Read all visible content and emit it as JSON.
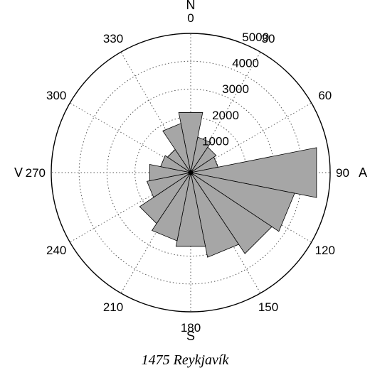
{
  "caption": "1475 Reykjavík",
  "chart_data": {
    "type": "polar-bar",
    "direction_unit": "degrees",
    "radial_max": 5000,
    "radial_ticks": [
      1000,
      2000,
      3000,
      4000,
      5000
    ],
    "radial_tick_labels": [
      "1000",
      "2000",
      "3000",
      "4000",
      "5000"
    ],
    "angle_ticks": [
      0,
      30,
      60,
      90,
      120,
      150,
      180,
      210,
      240,
      270,
      300,
      330
    ],
    "angle_tick_labels": [
      "0",
      "30",
      "60",
      "90",
      "120",
      "150",
      "180",
      "210",
      "240",
      "270",
      "300",
      "330"
    ],
    "compass_labels": {
      "N": "N",
      "A": "A",
      "S": "S",
      "V": "V"
    },
    "sector_width_deg": 22.5,
    "sectors": [
      {
        "direction": 0,
        "value": 2200
      },
      {
        "direction": 22.5,
        "value": 1300
      },
      {
        "direction": 45,
        "value": 1100
      },
      {
        "direction": 67.5,
        "value": 1000
      },
      {
        "direction": 90,
        "value": 4600
      },
      {
        "direction": 112.5,
        "value": 3800
      },
      {
        "direction": 135,
        "value": 3500
      },
      {
        "direction": 157.5,
        "value": 3100
      },
      {
        "direction": 180,
        "value": 2700
      },
      {
        "direction": 202.5,
        "value": 2500
      },
      {
        "direction": 225,
        "value": 2200
      },
      {
        "direction": 247.5,
        "value": 1600
      },
      {
        "direction": 270,
        "value": 1500
      },
      {
        "direction": 292.5,
        "value": 1100
      },
      {
        "direction": 315,
        "value": 1000
      },
      {
        "direction": 337.5,
        "value": 1800
      }
    ],
    "grid": true,
    "colors": {
      "bar_fill": "#a6a6a6",
      "bar_stroke": "#000000",
      "grid": "#555555"
    }
  }
}
